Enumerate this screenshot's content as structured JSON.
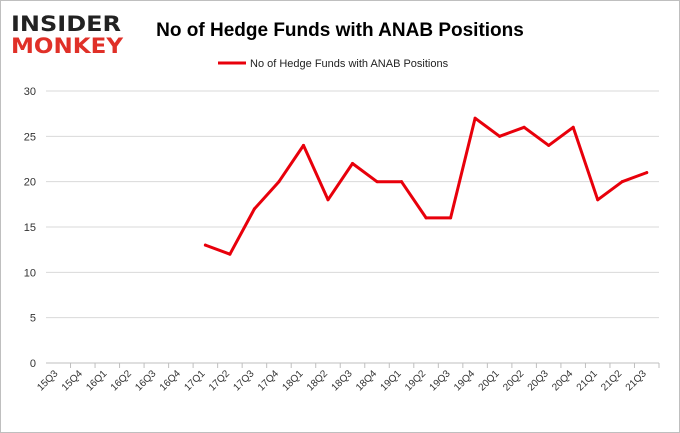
{
  "logo": {
    "line1": "INSIDER",
    "line2": "MONKEY",
    "color_dark": "#222222",
    "color_red": "#e03028"
  },
  "chart_data": {
    "type": "line",
    "title": "No of Hedge Funds with ANAB Positions",
    "xlabel": "",
    "ylabel": "",
    "ylim": [
      0,
      30
    ],
    "yticks": [
      0,
      5,
      10,
      15,
      20,
      25,
      30
    ],
    "grid": true,
    "legend_position": "top-center",
    "categories": [
      "15Q3",
      "15Q4",
      "16Q1",
      "16Q2",
      "16Q3",
      "16Q4",
      "17Q1",
      "17Q2",
      "17Q3",
      "17Q4",
      "18Q1",
      "18Q2",
      "18Q3",
      "18Q4",
      "19Q1",
      "19Q2",
      "19Q3",
      "19Q4",
      "20Q1",
      "20Q2",
      "20Q3",
      "20Q4",
      "21Q1",
      "21Q2",
      "21Q3"
    ],
    "series": [
      {
        "name": "No of Hedge Funds with ANAB Positions",
        "color": "#e8000b",
        "values": [
          null,
          null,
          null,
          null,
          null,
          null,
          13,
          12,
          17,
          20,
          24,
          18,
          22,
          20,
          20,
          16,
          16,
          27,
          25,
          26,
          24,
          26,
          18,
          20,
          21
        ]
      }
    ]
  }
}
